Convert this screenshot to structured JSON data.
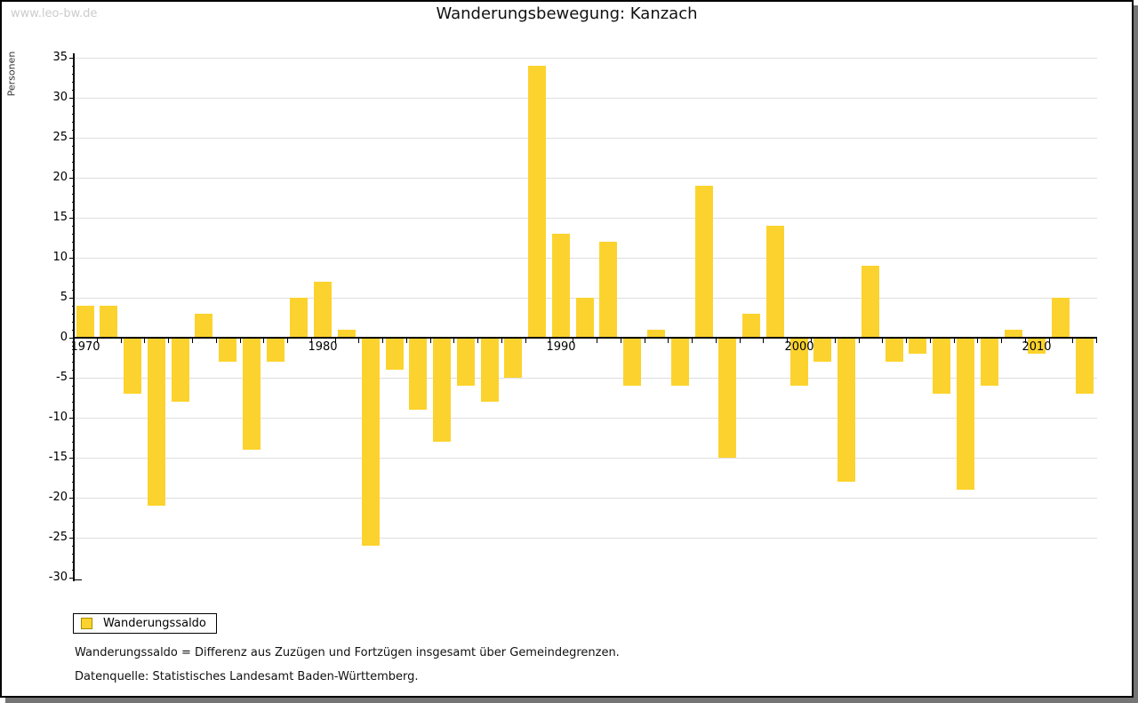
{
  "watermark": "www.leo-bw.de",
  "title": "Wanderungsbewegung: Kanzach",
  "y_axis_label": "Personen",
  "legend": {
    "label": "Wanderungssaldo"
  },
  "footnotes": [
    "Wanderungssaldo = Differenz aus Zuzügen und Fortzügen insgesamt über Gemeindegrenzen.",
    "Datenquelle: Statistisches Landesamt Baden-Württemberg."
  ],
  "colors": {
    "bar": "#FCD32E",
    "legend_swatch_border": "#A78E00",
    "grid": "#DEDEDE",
    "axis": "#000000",
    "watermark": "#CCCCCC"
  },
  "chart_data": {
    "type": "bar",
    "title": "Wanderungsbewegung: Kanzach",
    "xlabel": "",
    "ylabel": "Personen",
    "series_name": "Wanderungssaldo",
    "x": [
      1970,
      1971,
      1972,
      1973,
      1974,
      1975,
      1976,
      1977,
      1978,
      1979,
      1980,
      1981,
      1982,
      1983,
      1984,
      1985,
      1986,
      1987,
      1988,
      1989,
      1990,
      1991,
      1992,
      1993,
      1994,
      1995,
      1996,
      1997,
      1998,
      1999,
      2000,
      2001,
      2002,
      2003,
      2004,
      2005,
      2006,
      2007,
      2008,
      2009,
      2010,
      2011,
      2012
    ],
    "values": [
      4,
      4,
      -7,
      -21,
      -8,
      3,
      -3,
      -14,
      -3,
      5,
      7,
      1,
      -26,
      -4,
      -9,
      -13,
      -6,
      -8,
      -5,
      34,
      13,
      5,
      12,
      -6,
      1,
      -6,
      19,
      -15,
      3,
      14,
      -6,
      -3,
      -18,
      9,
      -3,
      -2,
      -7,
      -19,
      -6,
      1,
      -2,
      5,
      -7
    ],
    "ylim": [
      -30,
      35
    ],
    "ytick_major": 5,
    "ytick_minor": 1,
    "x_axis_labels": [
      1970,
      1980,
      1990,
      2000,
      2010
    ],
    "grid": true,
    "legend_position": "bottom-left"
  }
}
